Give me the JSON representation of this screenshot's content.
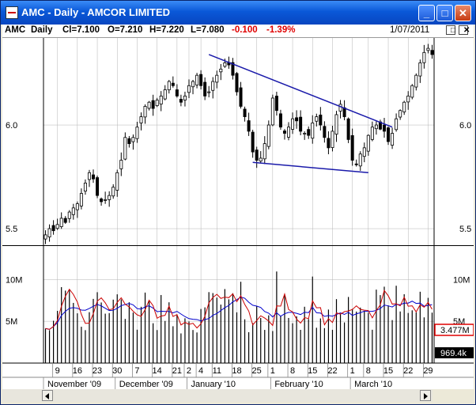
{
  "window": {
    "title": "AMC - Daily - AMCOR LIMITED",
    "minimize_glyph": "_",
    "maximize_glyph": "□",
    "close_glyph": "✕"
  },
  "info": {
    "symbol": "AMC",
    "period": "Daily",
    "close": "Cl=7.100",
    "open": "O=7.210",
    "high": "H=7.220",
    "low": "L=7.080",
    "change": "-0.100",
    "change_pct": "-1.39%",
    "date": "1/07/2011",
    "restore_glyph": "□",
    "close_glyph": "✕"
  },
  "colors": {
    "up": "#000000",
    "trendline": "#1a1aaa",
    "ma_fast": "#cc0000",
    "ma_slow": "#0000cc",
    "grid": "#b4b4b4",
    "tag_red": "#e00000",
    "tag_black": "#000000"
  },
  "chart_data": {
    "type": "candlestick",
    "price_ylim": [
      5.42,
      6.42
    ],
    "price_ticks": [
      "6.0",
      "5.5"
    ],
    "price_tick_values": [
      6.0,
      5.5
    ],
    "volume_ylim": [
      0,
      14000000
    ],
    "volume_ticks": [
      "10M",
      "5M"
    ],
    "volume_tick_values": [
      10000000,
      5000000
    ],
    "volume_tags": {
      "red": "3.477M",
      "black": "969.4k"
    },
    "day_labels": [
      "9",
      "16",
      "23",
      "30",
      "7",
      "14",
      "21",
      "2",
      "4",
      "11",
      "18",
      "25",
      "1",
      "8",
      "15",
      "22",
      "1",
      "8",
      "15",
      "22",
      "29"
    ],
    "day_label_index": [
      3,
      8,
      13,
      18,
      23,
      28,
      33,
      36,
      39,
      43,
      48,
      53,
      57,
      62,
      67,
      72,
      77,
      81,
      86,
      91,
      96
    ],
    "months": [
      {
        "label": "November '09",
        "start": 0
      },
      {
        "label": "December '09",
        "start": 18
      },
      {
        "label": "January '10",
        "start": 36
      },
      {
        "label": "February '10",
        "start": 57
      },
      {
        "label": "March '10",
        "start": 77
      }
    ],
    "closes": [
      5.47,
      5.5,
      5.49,
      5.52,
      5.55,
      5.53,
      5.58,
      5.6,
      5.62,
      5.67,
      5.72,
      5.77,
      5.74,
      5.66,
      5.63,
      5.64,
      5.66,
      5.7,
      5.77,
      5.83,
      5.94,
      5.91,
      5.94,
      5.99,
      6.04,
      6.09,
      6.11,
      6.08,
      6.12,
      6.14,
      6.17,
      6.21,
      6.19,
      6.14,
      6.11,
      6.14,
      6.19,
      6.21,
      6.24,
      6.19,
      6.14,
      6.16,
      6.21,
      6.24,
      6.27,
      6.3,
      6.29,
      6.24,
      6.16,
      6.09,
      6.04,
      5.97,
      5.87,
      5.83,
      5.84,
      5.91,
      6.0,
      6.13,
      6.07,
      5.99,
      5.96,
      5.99,
      6.03,
      6.02,
      5.97,
      5.96,
      5.95,
      6.01,
      6.04,
      6.0,
      5.94,
      5.89,
      5.97,
      6.05,
      6.1,
      6.04,
      5.93,
      5.83,
      5.81,
      5.86,
      5.89,
      5.95,
      5.99,
      6.0,
      5.98,
      5.97,
      5.92,
      5.96,
      6.03,
      6.07,
      6.11,
      6.14,
      6.19,
      6.24,
      6.3,
      6.35,
      6.37,
      6.34
    ]
  }
}
